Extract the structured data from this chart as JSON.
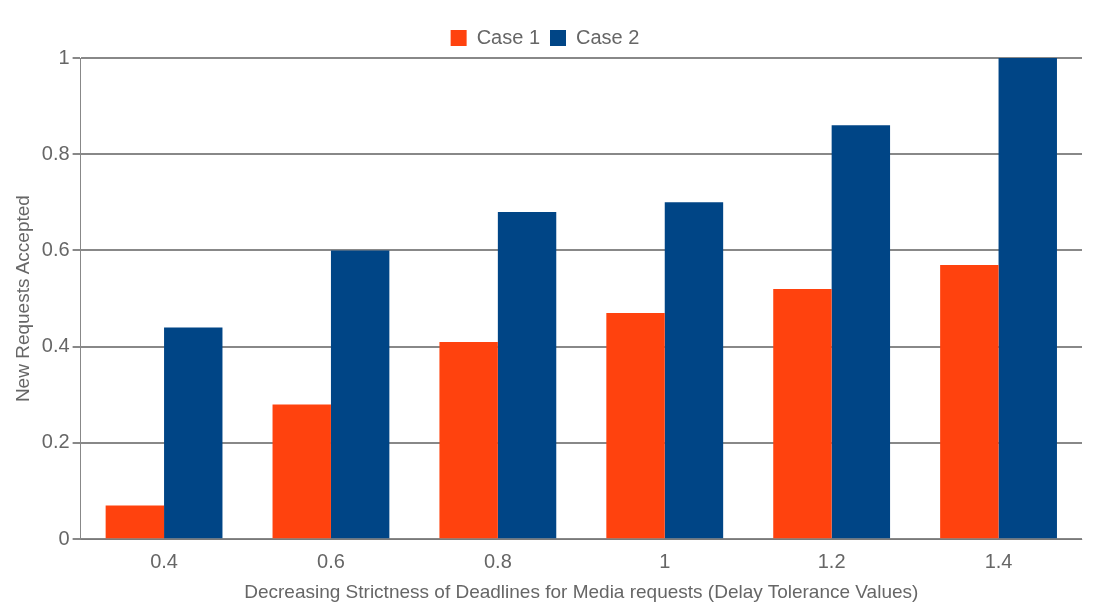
{
  "chart_data": {
    "type": "bar",
    "xlabel": "Decreasing Strictness of Deadlines for Media requests (Delay Tolerance Values)",
    "ylabel": "New Requests Accepted",
    "categories": [
      "0.4",
      "0.6",
      "0.8",
      "1",
      "1.2",
      "1.4"
    ],
    "series": [
      {
        "name": "Case 1",
        "color": "#ff420e",
        "values": [
          0.07,
          0.28,
          0.41,
          0.47,
          0.52,
          0.57
        ]
      },
      {
        "name": "Case 2",
        "color": "#004586",
        "values": [
          0.44,
          0.6,
          0.68,
          0.7,
          0.86,
          1.0
        ]
      }
    ],
    "ylim": [
      0,
      1
    ],
    "yticks": [
      0,
      0.2,
      0.4,
      0.6,
      0.8,
      1
    ],
    "grid": "y",
    "legend": "top"
  }
}
